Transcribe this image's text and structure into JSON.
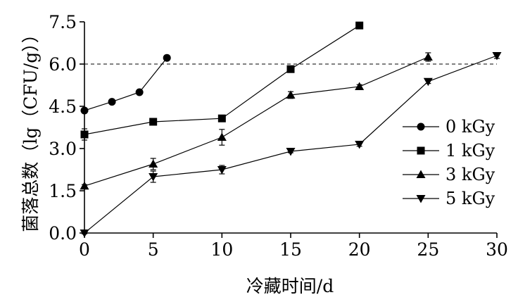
{
  "chart_data": {
    "type": "line",
    "xlabel": "冷藏时间/d",
    "ylabel": "菌落总数（lg（CFU/g））",
    "xlim": [
      0,
      30
    ],
    "ylim": [
      0,
      7.5
    ],
    "x_ticks": [
      "0",
      "5",
      "10",
      "15",
      "20",
      "25",
      "30"
    ],
    "y_ticks": [
      "0.0",
      "1.5",
      "3.0",
      "4.5",
      "6.0",
      "7.5"
    ],
    "reference_line": {
      "y": 6.0,
      "style": "dashed"
    },
    "grid": false,
    "legend_position": "right",
    "series": [
      {
        "name": "0 kGy",
        "marker": "circle",
        "points": [
          {
            "x": 0,
            "y": 4.35,
            "err": 0.08
          },
          {
            "x": 2,
            "y": 4.66,
            "err": 0.05
          },
          {
            "x": 4,
            "y": 5.0,
            "err": 0.05
          },
          {
            "x": 6,
            "y": 6.22,
            "err": 0.05
          }
        ]
      },
      {
        "name": "1 kGy",
        "marker": "square",
        "points": [
          {
            "x": 0,
            "y": 3.5,
            "err": 0.2
          },
          {
            "x": 5,
            "y": 3.95,
            "err": 0.08
          },
          {
            "x": 10,
            "y": 4.07,
            "err": 0.1
          },
          {
            "x": 15,
            "y": 5.82,
            "err": 0.06
          },
          {
            "x": 20,
            "y": 7.37,
            "err": 0.06
          }
        ]
      },
      {
        "name": "3 kGy",
        "marker": "triangle-up",
        "points": [
          {
            "x": 0,
            "y": 1.67,
            "err": 0.05
          },
          {
            "x": 5,
            "y": 2.45,
            "err": 0.2
          },
          {
            "x": 10,
            "y": 3.4,
            "err": 0.28
          },
          {
            "x": 15,
            "y": 4.9,
            "err": 0.12
          },
          {
            "x": 20,
            "y": 5.2,
            "err": 0.07
          },
          {
            "x": 25,
            "y": 6.25,
            "err": 0.15
          }
        ]
      },
      {
        "name": "5 kGy",
        "marker": "triangle-down",
        "points": [
          {
            "x": 0,
            "y": 0.0,
            "err": 0.03
          },
          {
            "x": 5,
            "y": 2.0,
            "err": 0.2
          },
          {
            "x": 10,
            "y": 2.25,
            "err": 0.15
          },
          {
            "x": 15,
            "y": 2.9,
            "err": 0.05
          },
          {
            "x": 20,
            "y": 3.15,
            "err": 0.07
          },
          {
            "x": 25,
            "y": 5.38,
            "err": 0.07
          },
          {
            "x": 30,
            "y": 6.3,
            "err": 0.1
          }
        ]
      }
    ]
  }
}
